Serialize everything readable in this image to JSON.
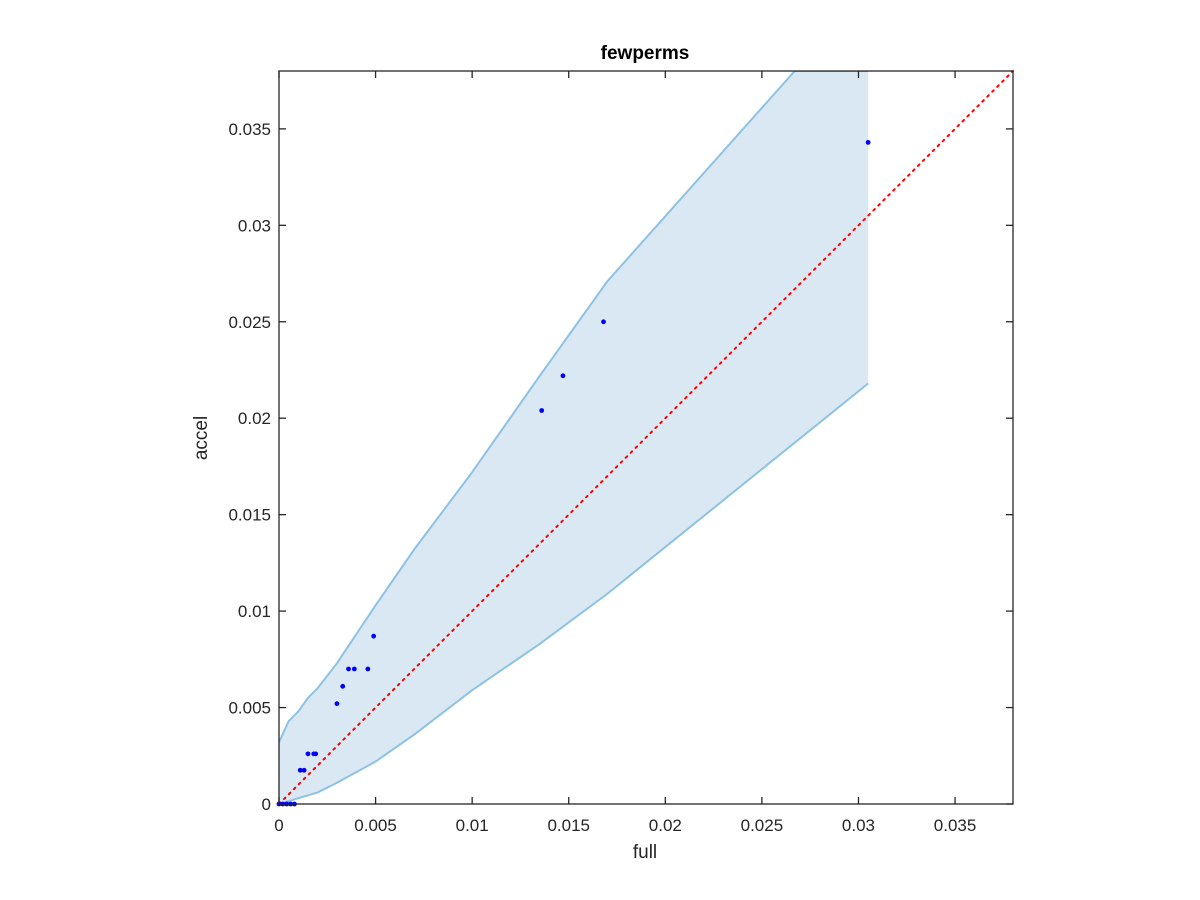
{
  "chart_data": {
    "type": "scatter",
    "title": "fewperms",
    "xlabel": "full",
    "ylabel": "accel",
    "xlim": [
      0,
      0.038
    ],
    "ylim": [
      0,
      0.038
    ],
    "x_ticks": [
      "0",
      "0.005",
      "0.01",
      "0.015",
      "0.02",
      "0.025",
      "0.03",
      "0.035"
    ],
    "y_ticks": [
      "0",
      "0.005",
      "0.01",
      "0.015",
      "0.02",
      "0.025",
      "0.03",
      "0.035"
    ],
    "x_tick_values": [
      0,
      0.005,
      0.01,
      0.015,
      0.02,
      0.025,
      0.03,
      0.035
    ],
    "y_tick_values": [
      0,
      0.005,
      0.01,
      0.015,
      0.02,
      0.025,
      0.03,
      0.035
    ],
    "grid": false,
    "legend": "none",
    "colors": {
      "points": "#0000ff",
      "reference_line": "#ff0000",
      "band_fill": "#dae8f4",
      "band_edge": "#8ec2e3",
      "axes": "#262626"
    },
    "points": [
      {
        "x": 0.0,
        "y": 0.0
      },
      {
        "x": 0.0002,
        "y": 0.0
      },
      {
        "x": 0.0004,
        "y": 0.0
      },
      {
        "x": 0.0006,
        "y": 0.0
      },
      {
        "x": 0.0008,
        "y": 0.0
      },
      {
        "x": 0.0011,
        "y": 0.00175
      },
      {
        "x": 0.0013,
        "y": 0.00175
      },
      {
        "x": 0.0015,
        "y": 0.0026
      },
      {
        "x": 0.0018,
        "y": 0.0026
      },
      {
        "x": 0.0019,
        "y": 0.0026
      },
      {
        "x": 0.003,
        "y": 0.0052
      },
      {
        "x": 0.0033,
        "y": 0.0061
      },
      {
        "x": 0.0036,
        "y": 0.007
      },
      {
        "x": 0.0039,
        "y": 0.007
      },
      {
        "x": 0.0046,
        "y": 0.007
      },
      {
        "x": 0.0049,
        "y": 0.0087
      },
      {
        "x": 0.0136,
        "y": 0.0204
      },
      {
        "x": 0.0147,
        "y": 0.0222
      },
      {
        "x": 0.0168,
        "y": 0.025
      },
      {
        "x": 0.0305,
        "y": 0.0343
      }
    ],
    "reference_line": {
      "style": "dotted",
      "x": [
        0,
        0.038
      ],
      "y": [
        0,
        0.038
      ]
    },
    "band": {
      "upper": {
        "x": [
          0,
          0.0005,
          0.001,
          0.0015,
          0.002,
          0.003,
          0.004,
          0.005,
          0.007,
          0.01,
          0.0135,
          0.017,
          0.0267,
          0.0305
        ],
        "y": [
          0.0032,
          0.0043,
          0.0048,
          0.0055,
          0.006,
          0.0073,
          0.0088,
          0.0103,
          0.0132,
          0.0172,
          0.0222,
          0.0271,
          0.038,
          0.038
        ]
      },
      "lower": {
        "x": [
          0,
          0.001,
          0.002,
          0.003,
          0.005,
          0.007,
          0.01,
          0.0135,
          0.017,
          0.0305
        ],
        "y": [
          0,
          0.0003,
          0.0006,
          0.0011,
          0.0022,
          0.0036,
          0.0059,
          0.0083,
          0.0109,
          0.0218
        ]
      }
    }
  }
}
